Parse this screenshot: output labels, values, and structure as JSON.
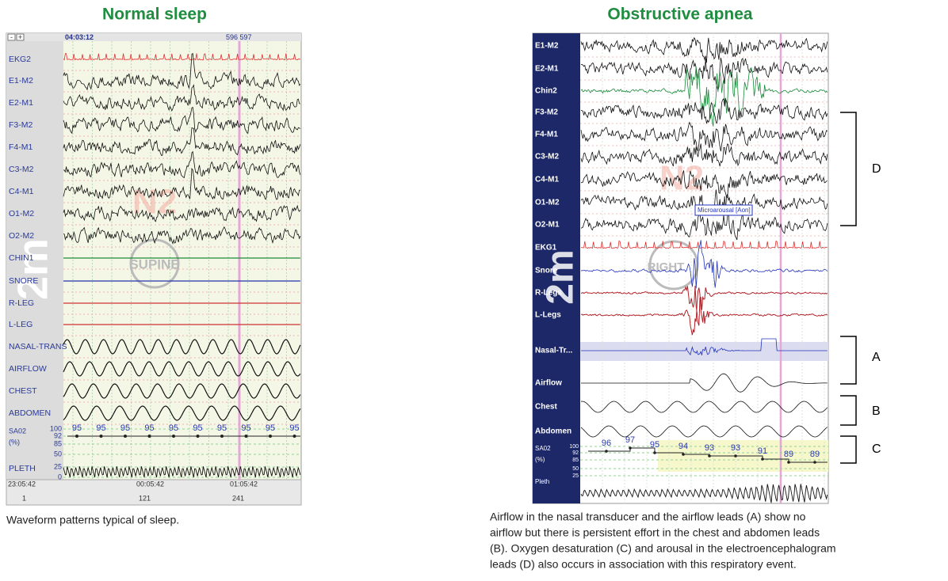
{
  "left": {
    "title": "Normal sleep",
    "buttons": [
      "-",
      "+"
    ],
    "time": "04:03:12",
    "epoch": "596 597",
    "channels": [
      "EKG2",
      "E1-M2",
      "E2-M1",
      "F3-M2",
      "F4-M1",
      "C3-M2",
      "C4-M1",
      "O1-M2",
      "O2-M2",
      "CHIN1",
      "SNORE",
      "R-LEG",
      "L-LEG",
      "NASAL-TRANS",
      "AIRFLOW",
      "CHEST",
      "ABDOMEN"
    ],
    "sao2_label": [
      "SA02",
      "(%)"
    ],
    "pleth_label": "PLETH",
    "sao2_axis": [
      100,
      92,
      85,
      50,
      25,
      0
    ],
    "sao2_values": [
      95,
      95,
      95,
      95,
      95,
      95,
      95,
      95,
      95,
      95
    ],
    "bottom_times": [
      "23:05:42",
      "00:05:42",
      "01:05:42"
    ],
    "bottom_epochs": [
      1,
      121,
      241
    ],
    "scale": "2m",
    "stage": "N2",
    "position": "SUPINE",
    "caption": "Waveform patterns typical of sleep."
  },
  "right": {
    "title": "Obstructive apnea",
    "channels": [
      "E1-M2",
      "E2-M1",
      "Chin2",
      "F3-M2",
      "F4-M1",
      "C3-M2",
      "C4-M1",
      "O1-M2",
      "O2-M1",
      "EKG1",
      "Snore",
      "R-Legs",
      "L-Legs",
      "Nasal-Tr...",
      "Airflow",
      "Chest",
      "Abdomen"
    ],
    "sao2_label": [
      "SA02",
      "(%)"
    ],
    "pleth_label": "Pleth",
    "sao2_axis": [
      100,
      92,
      85,
      50,
      25
    ],
    "sao2_values": [
      96,
      97,
      95,
      94,
      93,
      93,
      91,
      89,
      89
    ],
    "event": "Microarousal [Aon]",
    "scale": "2m",
    "stage": "N2",
    "position": "RIGHT",
    "brackets": [
      "D",
      "A",
      "B",
      "C"
    ],
    "caption": [
      "Airflow in the nasal transducer and the airflow leads (A) show no",
      "airflow but there is persistent effort in the chest and abdomen leads",
      "(B). Oxygen desaturation (C) and arousal in the electroencephalogram",
      "leads (D) also occurs in association with this respiratory event."
    ]
  }
}
